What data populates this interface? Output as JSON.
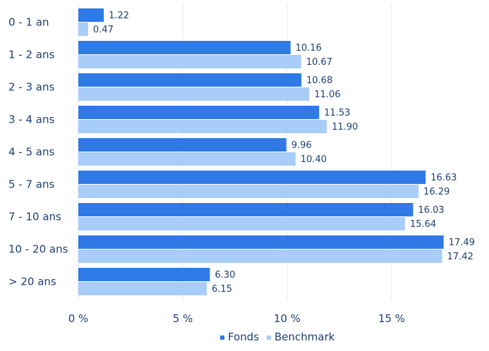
{
  "chart_data": {
    "type": "bar",
    "orientation": "horizontal",
    "categories": [
      "0 - 1 an",
      "1 - 2 ans",
      "2 - 3 ans",
      "3 - 4 ans",
      "4 - 5 ans",
      "5 - 7 ans",
      "7 - 10 ans",
      "10 - 20 ans",
      "> 20 ans"
    ],
    "series": [
      {
        "name": "Fonds",
        "color": "#2f7ae6",
        "values": [
          1.22,
          10.16,
          10.68,
          11.53,
          9.96,
          16.63,
          16.03,
          17.49,
          6.3
        ],
        "labels": [
          "1.22",
          "10.16",
          "10.68",
          "11.53",
          "9.96",
          "16.63",
          "16.03",
          "17.49",
          "6.30"
        ]
      },
      {
        "name": "Benchmark",
        "color": "#a9cdf9",
        "values": [
          0.47,
          10.67,
          11.06,
          11.9,
          10.4,
          16.29,
          15.64,
          17.42,
          6.15
        ],
        "labels": [
          "0.47",
          "10.67",
          "11.06",
          "11.90",
          "10.40",
          "16.29",
          "15.64",
          "17.42",
          "6.15"
        ]
      }
    ],
    "xlim": [
      0,
      19.5
    ],
    "xticks": [
      {
        "value": 0,
        "label": "0 %"
      },
      {
        "value": 5,
        "label": "5 %"
      },
      {
        "value": 10,
        "label": "10 %"
      },
      {
        "value": 15,
        "label": "15 %"
      }
    ],
    "grid": true,
    "legend_position": "bottom-right"
  }
}
